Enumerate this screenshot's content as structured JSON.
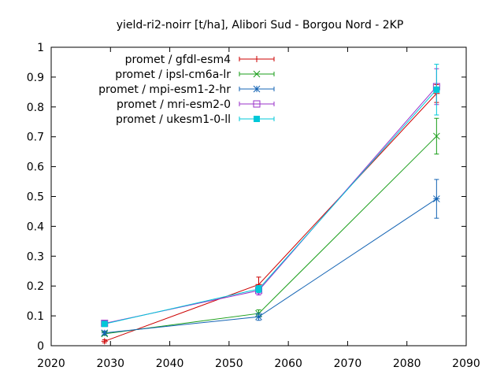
{
  "chart_data": {
    "type": "line",
    "title": "yield-ri2-noirr [t/ha], Alibori Sud - Borgou Nord - 2KP",
    "xlabel": "",
    "ylabel": "",
    "xlim": [
      2020,
      2090
    ],
    "ylim": [
      0,
      1
    ],
    "xticks": [
      2020,
      2030,
      2040,
      2050,
      2060,
      2070,
      2080,
      2090
    ],
    "yticks": [
      0,
      0.1,
      0.2,
      0.3,
      0.4,
      0.5,
      0.6,
      0.7,
      0.8,
      0.9,
      1
    ],
    "ytick_labels": [
      "0",
      "0.1",
      "0.2",
      "0.3",
      "0.4",
      "0.5",
      "0.6",
      "0.7",
      "0.8",
      "0.9",
      "1"
    ],
    "grid": false,
    "legend_position": "top-left",
    "x": [
      2029,
      2055,
      2085
    ],
    "series": [
      {
        "name": "promet / gfdl-esm4",
        "color": "#cc0000",
        "marker": "plus",
        "values": [
          0.015,
          0.205,
          0.845
        ],
        "err": [
          0.005,
          0.025,
          0.03
        ]
      },
      {
        "name": "promet / ipsl-cm6a-lr",
        "color": "#1a9e1a",
        "marker": "x",
        "values": [
          0.04,
          0.108,
          0.702
        ],
        "err": [
          0.005,
          0.012,
          0.06
        ]
      },
      {
        "name": "promet / mpi-esm1-2-hr",
        "color": "#1464b4",
        "marker": "star",
        "values": [
          0.043,
          0.097,
          0.492
        ],
        "err": [
          0.006,
          0.012,
          0.065
        ]
      },
      {
        "name": "promet / mri-esm2-0",
        "color": "#9a30c8",
        "marker": "square-open",
        "values": [
          0.075,
          0.185,
          0.868
        ],
        "err": [
          0.008,
          0.015,
          0.06
        ]
      },
      {
        "name": "promet / ukesm1-0-ll",
        "color": "#00c8d8",
        "marker": "square-filled",
        "values": [
          0.073,
          0.19,
          0.858
        ],
        "err": [
          0.008,
          0.012,
          0.085
        ]
      }
    ]
  }
}
